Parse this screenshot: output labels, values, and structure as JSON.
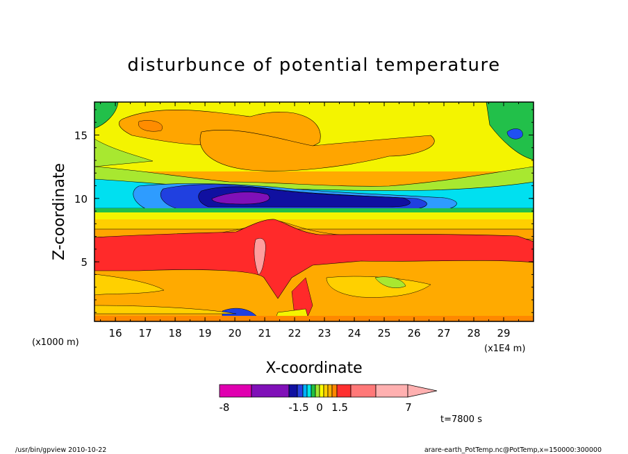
{
  "chart_data": {
    "type": "heatmap",
    "title": "disturbunce of potential temperature",
    "xlabel": "X-coordinate",
    "ylabel": "Z-coordinate",
    "x_unit_left": "(x1000 m)",
    "x_unit_right": "(x1E4 m)",
    "xlim": [
      15.3,
      30.0
    ],
    "ylim": [
      0.3,
      17.6
    ],
    "x_ticks": [
      "16",
      "17",
      "18",
      "19",
      "20",
      "21",
      "22",
      "23",
      "24",
      "25",
      "26",
      "27",
      "28",
      "29"
    ],
    "y_ticks": [
      "5",
      "10",
      "15"
    ],
    "colorbar": {
      "labels": [
        "-8",
        "-1.5",
        "0",
        "1.5",
        "7"
      ],
      "colors": [
        "#e000b0",
        "#8010b8",
        "#1010a0",
        "#2840e0",
        "#00b0ff",
        "#00e8e8",
        "#20c040",
        "#a0e830",
        "#ffff00",
        "#ffd000",
        "#ffb000",
        "#ff8800",
        "#ff3030",
        "#ff7878",
        "#ffb0b0"
      ]
    },
    "time_label": "t=7800 s"
  },
  "footer": {
    "left": "/usr/bin/gpview   2010-10-22",
    "right": "arare-earth_PotTemp.nc@PotTemp,x=150000:300000"
  }
}
